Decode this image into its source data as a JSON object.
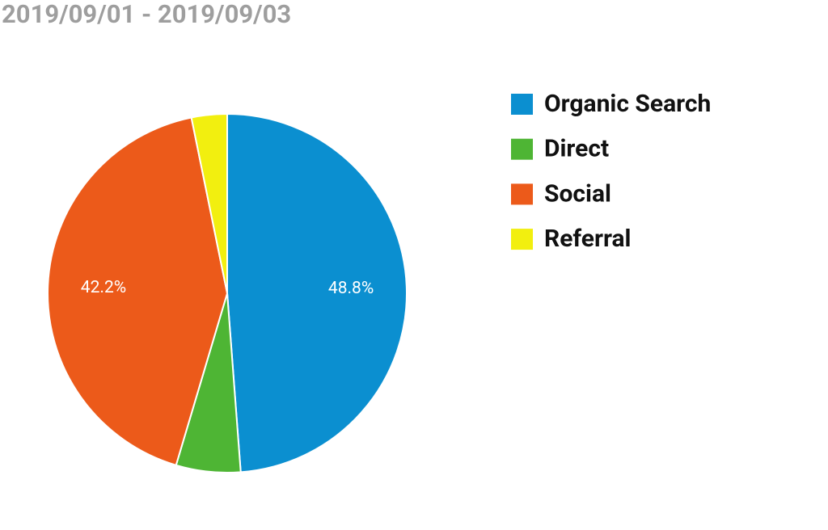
{
  "chart_data": {
    "type": "pie",
    "title": "2019/09/01 - 2019/09/03",
    "categories": [
      "Organic Search",
      "Direct",
      "Social",
      "Referral"
    ],
    "values": [
      48.8,
      5.8,
      42.2,
      3.2
    ],
    "value_labels": [
      "48.8%",
      null,
      "42.2%",
      null
    ],
    "colors": [
      "#0b8fd0",
      "#4eb534",
      "#ec5a1a",
      "#f2ef0f"
    ],
    "legend": "right"
  }
}
